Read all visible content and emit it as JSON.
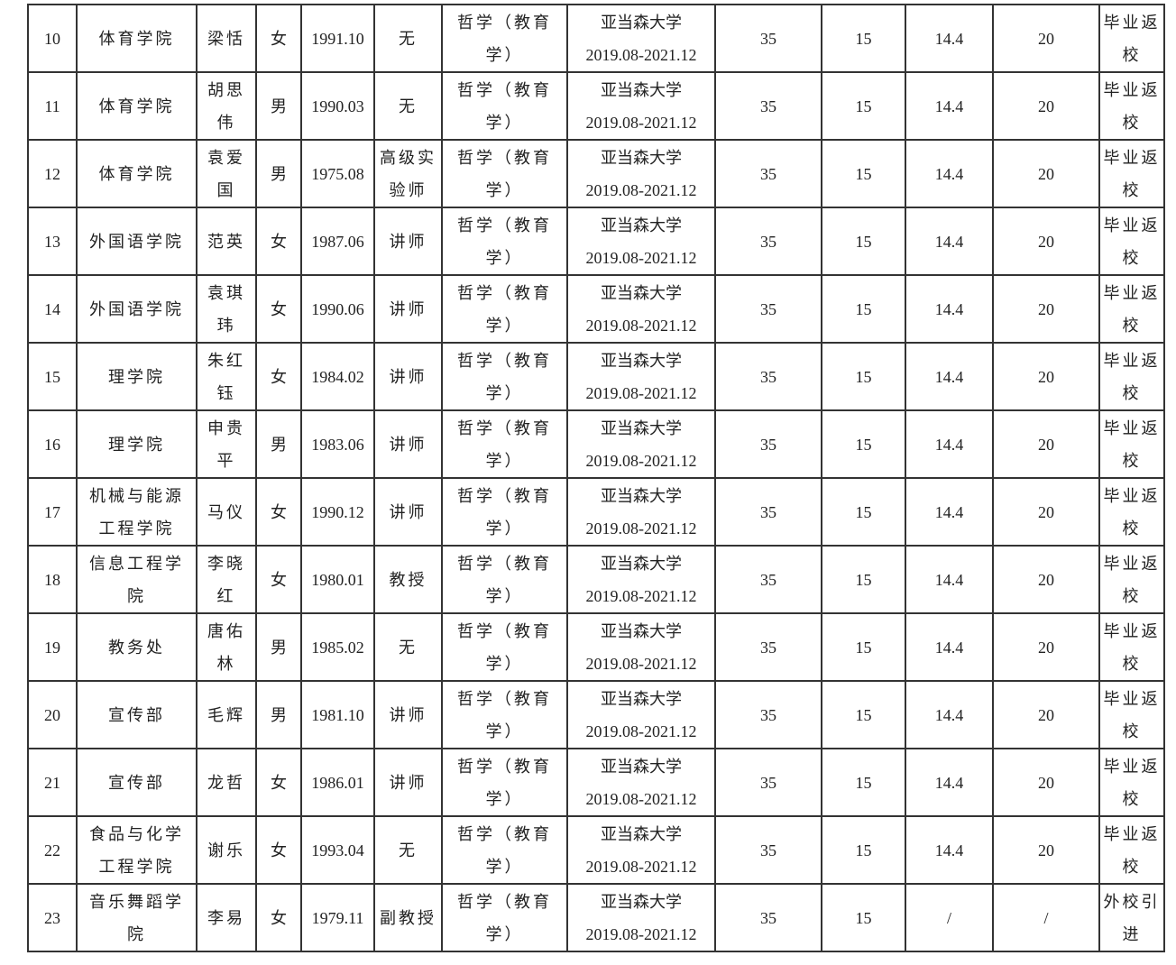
{
  "table": {
    "rows": [
      [
        10,
        "体育学院",
        "梁恬",
        "女",
        "1991.10",
        "无",
        "哲学（教育学）",
        "亚当森大学",
        "2019.08-2021.12",
        35,
        15,
        14.4,
        20,
        "毕业返校"
      ],
      [
        11,
        "体育学院",
        "胡思伟",
        "男",
        "1990.03",
        "无",
        "哲学（教育学）",
        "亚当森大学",
        "2019.08-2021.12",
        35,
        15,
        14.4,
        20,
        "毕业返校"
      ],
      [
        12,
        "体育学院",
        "袁爱国",
        "男",
        "1975.08",
        "高级实验师",
        "哲学（教育学）",
        "亚当森大学",
        "2019.08-2021.12",
        35,
        15,
        14.4,
        20,
        "毕业返校"
      ],
      [
        13,
        "外国语学院",
        "范英",
        "女",
        "1987.06",
        "讲师",
        "哲学（教育学）",
        "亚当森大学",
        "2019.08-2021.12",
        35,
        15,
        14.4,
        20,
        "毕业返校"
      ],
      [
        14,
        "外国语学院",
        "袁琪玮",
        "女",
        "1990.06",
        "讲师",
        "哲学（教育学）",
        "亚当森大学",
        "2019.08-2021.12",
        35,
        15,
        14.4,
        20,
        "毕业返校"
      ],
      [
        15,
        "理学院",
        "朱红钰",
        "女",
        "1984.02",
        "讲师",
        "哲学（教育学）",
        "亚当森大学",
        "2019.08-2021.12",
        35,
        15,
        14.4,
        20,
        "毕业返校"
      ],
      [
        16,
        "理学院",
        "申贵平",
        "男",
        "1983.06",
        "讲师",
        "哲学（教育学）",
        "亚当森大学",
        "2019.08-2021.12",
        35,
        15,
        14.4,
        20,
        "毕业返校"
      ],
      [
        17,
        "机械与能源工程学院",
        "马仪",
        "女",
        "1990.12",
        "讲师",
        "哲学（教育学）",
        "亚当森大学",
        "2019.08-2021.12",
        35,
        15,
        14.4,
        20,
        "毕业返校"
      ],
      [
        18,
        "信息工程学院",
        "李晓红",
        "女",
        "1980.01",
        "教授",
        "哲学（教育学）",
        "亚当森大学",
        "2019.08-2021.12",
        35,
        15,
        14.4,
        20,
        "毕业返校"
      ],
      [
        19,
        "教务处",
        "唐佑林",
        "男",
        "1985.02",
        "无",
        "哲学（教育学）",
        "亚当森大学",
        "2019.08-2021.12",
        35,
        15,
        14.4,
        20,
        "毕业返校"
      ],
      [
        20,
        "宣传部",
        "毛辉",
        "男",
        "1981.10",
        "讲师",
        "哲学（教育学）",
        "亚当森大学",
        "2019.08-2021.12",
        35,
        15,
        14.4,
        20,
        "毕业返校"
      ],
      [
        21,
        "宣传部",
        "龙哲",
        "女",
        "1986.01",
        "讲师",
        "哲学（教育学）",
        "亚当森大学",
        "2019.08-2021.12",
        35,
        15,
        14.4,
        20,
        "毕业返校"
      ],
      [
        22,
        "食品与化学工程学院",
        "谢乐",
        "女",
        "1993.04",
        "无",
        "哲学（教育学）",
        "亚当森大学",
        "2019.08-2021.12",
        35,
        15,
        14.4,
        20,
        "毕业返校"
      ],
      [
        23,
        "音乐舞蹈学院",
        "李易",
        "女",
        "1979.11",
        "副教授",
        "哲学（教育学）",
        "亚当森大学",
        "2019.08-2021.12",
        35,
        15,
        "/",
        "/",
        "外校引进"
      ]
    ]
  }
}
